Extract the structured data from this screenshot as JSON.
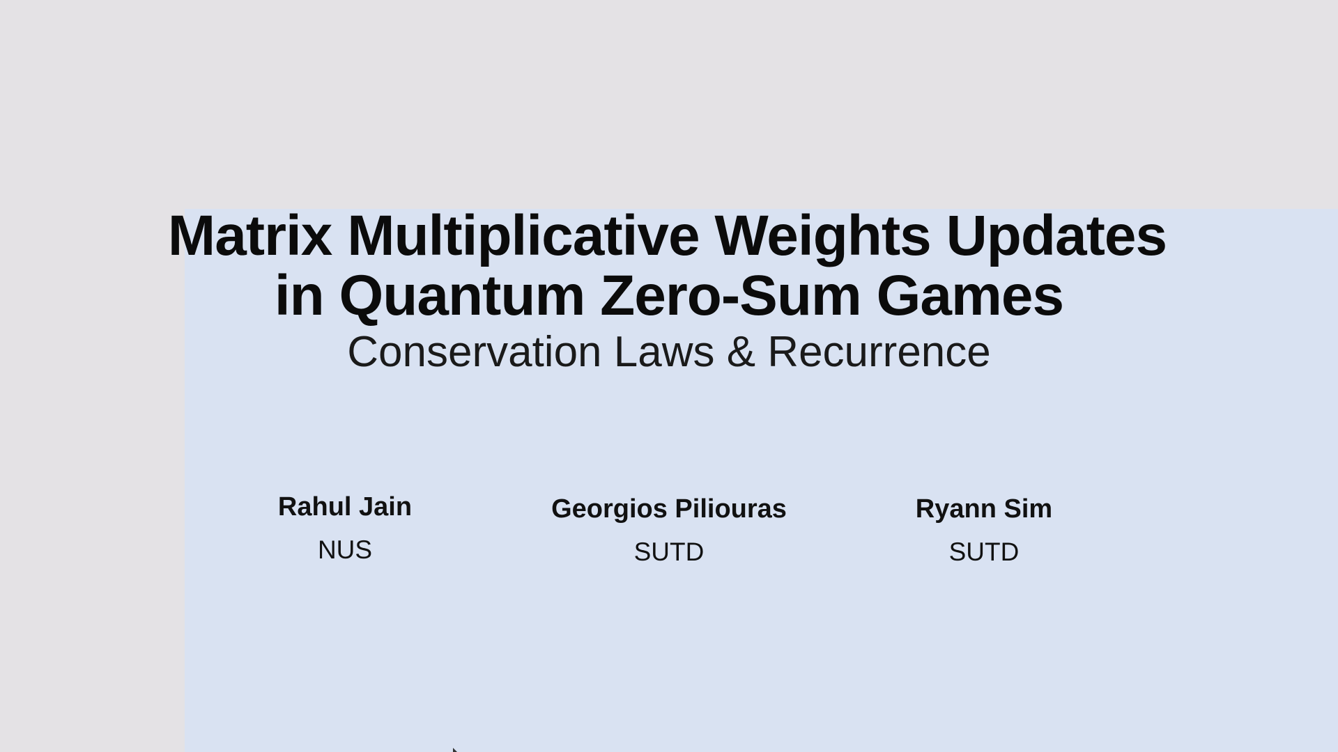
{
  "slide": {
    "title_line_1": "Matrix Multiplicative Weights Updates",
    "title_line_2": "in Quantum Zero-Sum Games",
    "subtitle": "Conservation Laws & Recurrence",
    "authors": [
      {
        "name": "Rahul Jain",
        "affiliation": "NUS"
      },
      {
        "name": "Georgios Piliouras",
        "affiliation": "SUTD"
      },
      {
        "name": "Ryann Sim",
        "affiliation": "SUTD"
      }
    ]
  },
  "colors": {
    "background": "#e4e2e5",
    "panel": "#d9e2f2",
    "text": "#0b0b0b"
  }
}
